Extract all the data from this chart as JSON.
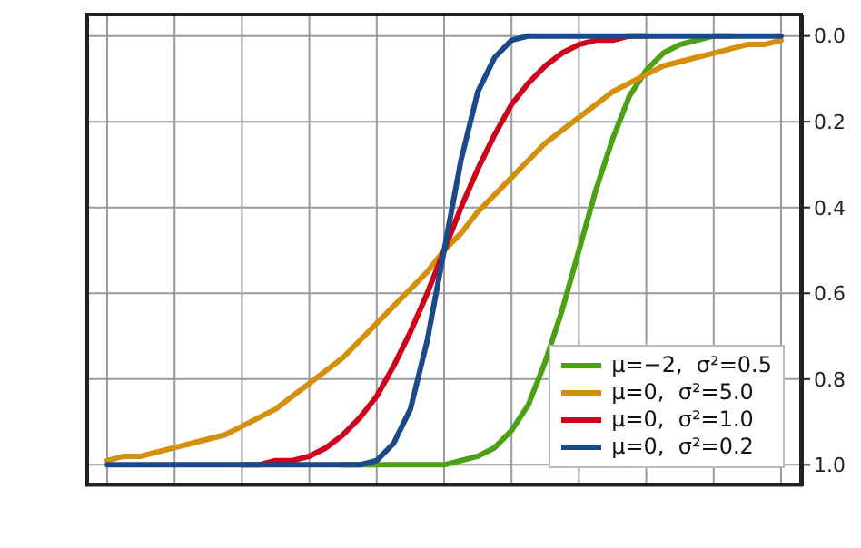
{
  "chart_data": {
    "type": "line",
    "categories": [
      null,
      null,
      null,
      null,
      null,
      null,
      null,
      null,
      null,
      null,
      null,
      null,
      null,
      null,
      null,
      null,
      null,
      null,
      null,
      null,
      null,
      null,
      null,
      null,
      null,
      null,
      null,
      null,
      null,
      null,
      null,
      null,
      null,
      null,
      null,
      null,
      null,
      null,
      null,
      null,
      null
    ],
    "series": [
      {
        "name": "μ=−2,  σ²=0.5",
        "color": "#4ca014",
        "values": [
          null,
          null,
          null,
          null,
          null,
          null,
          null,
          null,
          null,
          null,
          null,
          null,
          null,
          null,
          1,
          1,
          1,
          1,
          1,
          1,
          1,
          0.99,
          0.98,
          0.96,
          0.92,
          0.86,
          0.76,
          0.64,
          0.5,
          0.36,
          0.24,
          0.14,
          0.08,
          0.04,
          0.02,
          0.01,
          0,
          0,
          null,
          null,
          null
        ]
      },
      {
        "name": "μ=0,  σ²=5.0",
        "color": "#d4900c",
        "values": [
          0.99,
          0.98,
          0.98,
          0.97,
          0.96,
          0.95,
          0.94,
          0.93,
          0.91,
          0.89,
          0.87,
          0.84,
          0.81,
          0.78,
          0.75,
          0.71,
          0.67,
          0.63,
          0.59,
          0.55,
          0.5,
          0.46,
          0.41,
          0.37,
          0.33,
          0.29,
          0.25,
          0.22,
          0.19,
          0.16,
          0.13,
          0.11,
          0.09,
          0.07,
          0.06,
          0.05,
          0.04,
          0.03,
          0.02,
          0.02,
          0.01
        ]
      },
      {
        "name": "μ=0,  σ²=1.0",
        "color": "#d0021b",
        "values": [
          null,
          null,
          null,
          null,
          null,
          null,
          null,
          null,
          1,
          1,
          0.99,
          0.99,
          0.98,
          0.96,
          0.93,
          0.89,
          0.84,
          0.77,
          0.69,
          0.6,
          0.5,
          0.4,
          0.31,
          0.23,
          0.16,
          0.11,
          0.07,
          0.04,
          0.02,
          0.01,
          0.01,
          0,
          0,
          null,
          null,
          null,
          null,
          null,
          null,
          null,
          null
        ]
      },
      {
        "name": "μ=0,  σ²=0.2",
        "color": "#1a4a8a",
        "values": [
          1,
          1,
          1,
          1,
          1,
          1,
          1,
          1,
          1,
          1,
          1,
          1,
          1,
          1,
          1,
          1,
          0.99,
          0.95,
          0.87,
          0.71,
          0.5,
          0.29,
          0.13,
          0.05,
          0.01,
          0,
          0,
          0,
          0,
          0,
          0,
          0,
          0,
          0,
          0,
          0,
          0,
          0,
          0,
          0,
          0
        ]
      }
    ],
    "ylim": [
      1.05,
      -0.05
    ],
    "yticks": [
      {
        "value": 0,
        "label": "0.0"
      },
      {
        "value": 0.2,
        "label": "0.2"
      },
      {
        "value": 0.4,
        "label": "0.4"
      },
      {
        "value": 0.6,
        "label": "0.6"
      },
      {
        "value": 0.8,
        "label": "0.8"
      },
      {
        "value": 1,
        "label": "1.0"
      }
    ],
    "grid": true,
    "legend": "bottom right",
    "marker": "none",
    "line_style": "solid"
  }
}
